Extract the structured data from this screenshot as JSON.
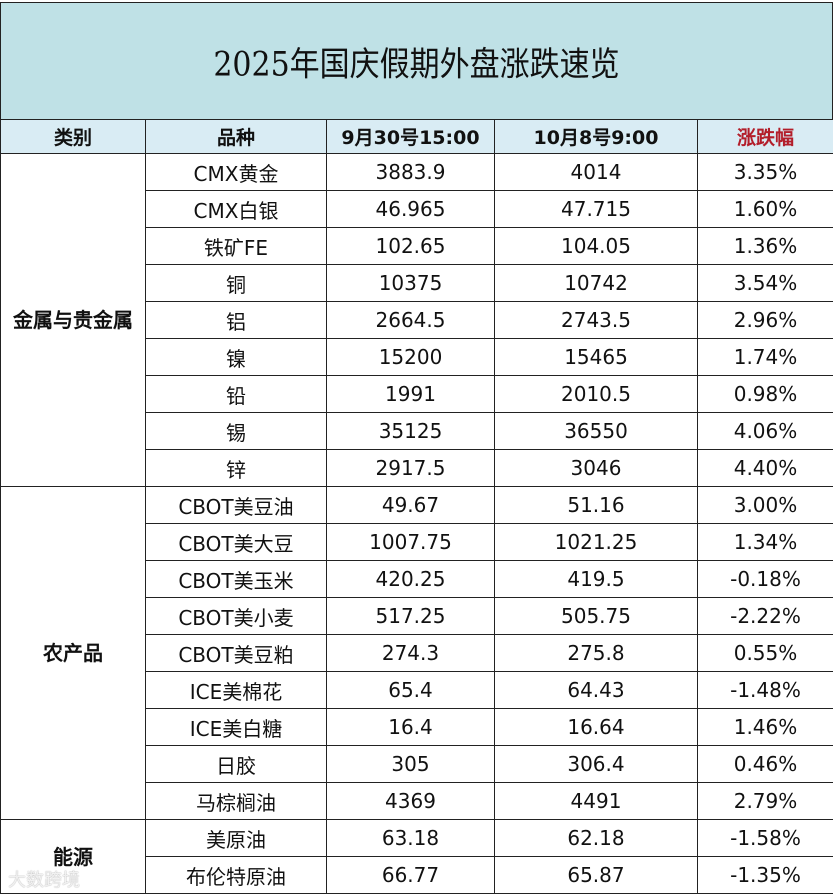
{
  "title": "2025年国庆假期外盘涨跌速览",
  "headers": {
    "category": "类别",
    "variety": "品种",
    "price_before": "9月30号15:00",
    "price_after": "10月8号9:00",
    "change": "涨跌幅"
  },
  "colors": {
    "title_bg": "#bfe1e6",
    "header_bg": "#d9ecf4",
    "change_header": "#b31e2a",
    "positive": "#8a2b3c",
    "negative": "#9bc07a",
    "metal_bg": "#fdf1ea",
    "agri_bg": "#eef2e6",
    "energy_bg": "#d8ecf5"
  },
  "groups": [
    {
      "category": "金属与贵金属",
      "rows": [
        {
          "variety": "CMX黄金",
          "before": "3883.9",
          "after": "4014",
          "change": "3.35%"
        },
        {
          "variety": "CMX白银",
          "before": "46.965",
          "after": "47.715",
          "change": "1.60%"
        },
        {
          "variety": "铁矿FE",
          "before": "102.65",
          "after": "104.05",
          "change": "1.36%"
        },
        {
          "variety": "铜",
          "before": "10375",
          "after": "10742",
          "change": "3.54%"
        },
        {
          "variety": "铝",
          "before": "2664.5",
          "after": "2743.5",
          "change": "2.96%"
        },
        {
          "variety": "镍",
          "before": "15200",
          "after": "15465",
          "change": "1.74%"
        },
        {
          "variety": "铅",
          "before": "1991",
          "after": "2010.5",
          "change": "0.98%"
        },
        {
          "variety": "锡",
          "before": "35125",
          "after": "36550",
          "change": "4.06%"
        },
        {
          "variety": "锌",
          "before": "2917.5",
          "after": "3046",
          "change": "4.40%"
        }
      ]
    },
    {
      "category": "农产品",
      "rows": [
        {
          "variety": "CBOT美豆油",
          "before": "49.67",
          "after": "51.16",
          "change": "3.00%"
        },
        {
          "variety": "CBOT美大豆",
          "before": "1007.75",
          "after": "1021.25",
          "change": "1.34%"
        },
        {
          "variety": "CBOT美玉米",
          "before": "420.25",
          "after": "419.5",
          "change": "-0.18%"
        },
        {
          "variety": "CBOT美小麦",
          "before": "517.25",
          "after": "505.75",
          "change": "-2.22%"
        },
        {
          "variety": "CBOT美豆粕",
          "before": "274.3",
          "after": "275.8",
          "change": "0.55%"
        },
        {
          "variety": "ICE美棉花",
          "before": "65.4",
          "after": "64.43",
          "change": "-1.48%"
        },
        {
          "variety": "ICE美白糖",
          "before": "16.4",
          "after": "16.64",
          "change": "1.46%"
        },
        {
          "variety": "日胶",
          "before": "305",
          "after": "306.4",
          "change": "0.46%"
        },
        {
          "variety": "马棕榈油",
          "before": "4369",
          "after": "4491",
          "change": "2.79%"
        }
      ]
    },
    {
      "category": "能源",
      "rows": [
        {
          "variety": "美原油",
          "before": "63.18",
          "after": "62.18",
          "change": "-1.58%"
        },
        {
          "variety": "布伦特原油",
          "before": "66.77",
          "after": "65.87",
          "change": "-1.35%"
        }
      ]
    }
  ],
  "watermark": "大数跨境"
}
